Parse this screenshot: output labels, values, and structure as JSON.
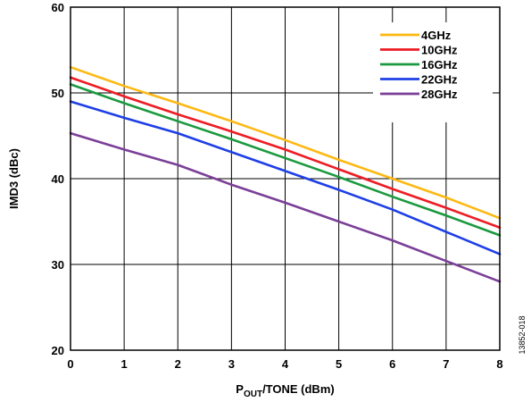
{
  "chart_data": {
    "type": "line",
    "xlabel_main": "P",
    "xlabel_sub": "OUT",
    "xlabel_rest": "/TONE (dBm)",
    "ylabel": "IMD3 (dBc)",
    "xlim": [
      0,
      8
    ],
    "ylim": [
      20,
      60
    ],
    "x_ticks": [
      0,
      1,
      2,
      3,
      4,
      5,
      6,
      7,
      8
    ],
    "y_ticks": [
      20,
      30,
      40,
      50,
      60
    ],
    "grid": true,
    "legend_position": "top-right",
    "figure_id": "13852-018",
    "x": [
      0,
      1,
      2,
      3,
      4,
      5,
      6,
      7,
      8
    ],
    "series": [
      {
        "name": "4GHz",
        "color": "#FDB913",
        "values": [
          53.0,
          50.8,
          48.8,
          46.7,
          44.5,
          42.2,
          40.0,
          37.8,
          35.4
        ]
      },
      {
        "name": "10GHz",
        "color": "#ED1C24",
        "values": [
          51.8,
          49.6,
          47.5,
          45.5,
          43.4,
          41.1,
          38.8,
          36.6,
          34.3
        ]
      },
      {
        "name": "16GHz",
        "color": "#1A9A3F",
        "values": [
          51.0,
          48.8,
          46.7,
          44.6,
          42.4,
          40.2,
          37.9,
          35.7,
          33.4
        ]
      },
      {
        "name": "22GHz",
        "color": "#1E3FE6",
        "values": [
          49.0,
          47.1,
          45.3,
          43.1,
          40.9,
          38.7,
          36.4,
          33.8,
          31.2
        ]
      },
      {
        "name": "28GHz",
        "color": "#7B3F98",
        "values": [
          45.3,
          43.4,
          41.6,
          39.3,
          37.2,
          35.0,
          32.8,
          30.4,
          28.0
        ]
      }
    ]
  }
}
